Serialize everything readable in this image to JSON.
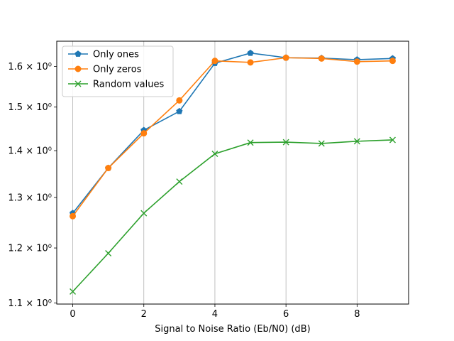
{
  "chart_data": {
    "type": "line",
    "title": "",
    "xlabel": "Signal to Noise Ratio (Eb/N0) (dB)",
    "ylabel": "",
    "x": [
      0,
      1,
      2,
      3,
      4,
      5,
      6,
      7,
      8,
      9
    ],
    "xlim": [
      -0.45,
      9.45
    ],
    "ylim": [
      1.098,
      1.665
    ],
    "yscale": "log",
    "x_ticks": [
      {
        "value": 0,
        "label": "0"
      },
      {
        "value": 2,
        "label": "2"
      },
      {
        "value": 4,
        "label": "4"
      },
      {
        "value": 6,
        "label": "6"
      },
      {
        "value": 8,
        "label": "8"
      }
    ],
    "y_ticks": [
      {
        "value": 1.1,
        "label": "1.1 × 10⁰"
      },
      {
        "value": 1.2,
        "label": "1.2 × 10⁰"
      },
      {
        "value": 1.3,
        "label": "1.3 × 10⁰"
      },
      {
        "value": 1.4,
        "label": "1.4 × 10⁰"
      },
      {
        "value": 1.5,
        "label": "1.5 × 10⁰"
      },
      {
        "value": 1.6,
        "label": "1.6 × 10⁰"
      }
    ],
    "grid": "vertical",
    "legend_position": "top-left",
    "series": [
      {
        "name": "Only ones",
        "color": "#1f77b4",
        "marker": "pentagon",
        "values": [
          1.268,
          1.362,
          1.446,
          1.49,
          1.608,
          1.634,
          1.622,
          1.621,
          1.617,
          1.62
        ]
      },
      {
        "name": "Only zeros",
        "color": "#ff7f0e",
        "marker": "circle",
        "values": [
          1.262,
          1.362,
          1.439,
          1.516,
          1.614,
          1.61,
          1.622,
          1.62,
          1.612,
          1.614
        ]
      },
      {
        "name": "Random values",
        "color": "#2ca02c",
        "marker": "x",
        "values": [
          1.12,
          1.19,
          1.268,
          1.333,
          1.393,
          1.418,
          1.419,
          1.416,
          1.421,
          1.424
        ]
      }
    ]
  }
}
